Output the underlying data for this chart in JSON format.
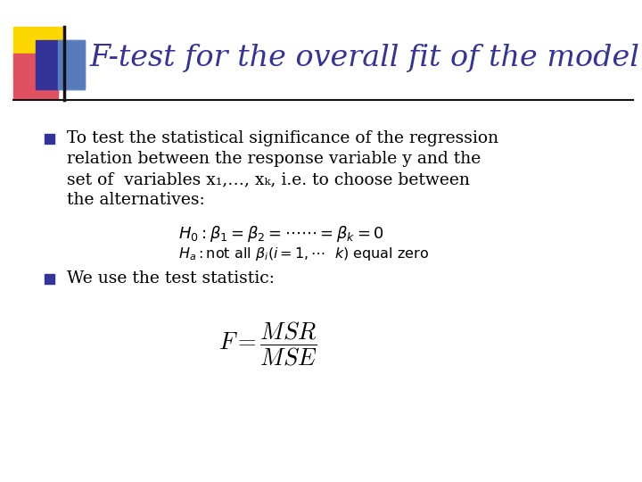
{
  "title": "F-test for the overall fit of the model",
  "title_color": "#333399",
  "bg_color": "#FFFFFF",
  "bullet_color": "#333399",
  "body_color": "#000000",
  "bullet1_lines": [
    "To test the statistical significance of the regression",
    "relation between the response variable y and the",
    "set of  variables x₁,…, xₖ, i.e. to choose between",
    "the alternatives:"
  ],
  "bullet2_line": "We use the test statistic:",
  "header_line_color": "#000000",
  "accent_yellow": "#FFD700",
  "accent_pink": "#E05060",
  "accent_blue_dark": "#333399",
  "accent_blue_light": "#6699CC"
}
